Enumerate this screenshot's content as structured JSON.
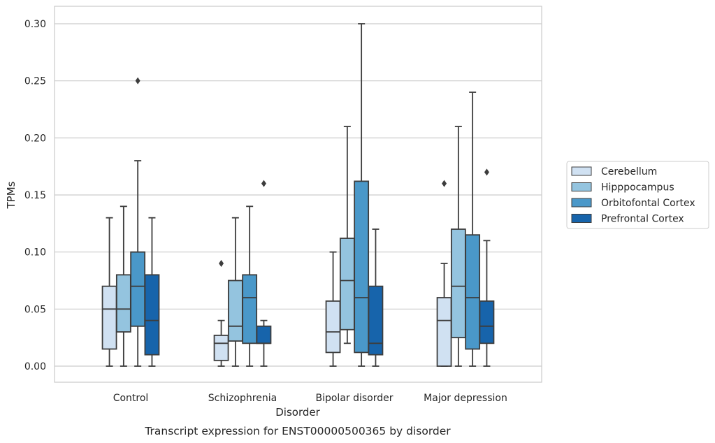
{
  "chart_data": {
    "type": "box",
    "caption": "Transcript expression for ENST00000500365 by disorder",
    "xlabel": "Disorder",
    "ylabel": "TPMs",
    "ylim": [
      -0.015,
      0.315
    ],
    "yticks": [
      "0.00",
      "0.05",
      "0.10",
      "0.15",
      "0.20",
      "0.25",
      "0.30"
    ],
    "ytick_values": [
      0.0,
      0.05,
      0.1,
      0.15,
      0.2,
      0.25,
      0.3
    ],
    "grid": "horizontal",
    "legend_position": "right",
    "categories": [
      "Control",
      "Schizophrenia",
      "Bipolar disorder",
      "Major depression"
    ],
    "series": [
      {
        "name": "Cerebellum",
        "color": "#d0e1f2",
        "boxes": [
          {
            "whisker_low": 0.0,
            "q1": 0.015,
            "median": 0.05,
            "q3": 0.07,
            "whisker_high": 0.13,
            "outliers": []
          },
          {
            "whisker_low": 0.0,
            "q1": 0.005,
            "median": 0.02,
            "q3": 0.027,
            "whisker_high": 0.04,
            "outliers": [
              0.09
            ]
          },
          {
            "whisker_low": 0.0,
            "q1": 0.012,
            "median": 0.03,
            "q3": 0.057,
            "whisker_high": 0.1,
            "outliers": []
          },
          {
            "whisker_low": 0.0,
            "q1": 0.0,
            "median": 0.04,
            "q3": 0.06,
            "whisker_high": 0.09,
            "outliers": [
              0.16
            ]
          }
        ]
      },
      {
        "name": "Hipppocampus",
        "color": "#94c4df",
        "boxes": [
          {
            "whisker_low": 0.0,
            "q1": 0.03,
            "median": 0.05,
            "q3": 0.08,
            "whisker_high": 0.14,
            "outliers": []
          },
          {
            "whisker_low": 0.0,
            "q1": 0.022,
            "median": 0.035,
            "q3": 0.075,
            "whisker_high": 0.13,
            "outliers": []
          },
          {
            "whisker_low": 0.02,
            "q1": 0.032,
            "median": 0.075,
            "q3": 0.112,
            "whisker_high": 0.21,
            "outliers": []
          },
          {
            "whisker_low": 0.0,
            "q1": 0.025,
            "median": 0.07,
            "q3": 0.12,
            "whisker_high": 0.21,
            "outliers": []
          }
        ]
      },
      {
        "name": "Orbitofontal Cortex",
        "color": "#4a98c9",
        "boxes": [
          {
            "whisker_low": 0.0,
            "q1": 0.035,
            "median": 0.07,
            "q3": 0.1,
            "whisker_high": 0.18,
            "outliers": [
              0.25
            ]
          },
          {
            "whisker_low": 0.0,
            "q1": 0.02,
            "median": 0.06,
            "q3": 0.08,
            "whisker_high": 0.14,
            "outliers": []
          },
          {
            "whisker_low": 0.0,
            "q1": 0.012,
            "median": 0.06,
            "q3": 0.162,
            "whisker_high": 0.3,
            "outliers": []
          },
          {
            "whisker_low": 0.0,
            "q1": 0.015,
            "median": 0.06,
            "q3": 0.115,
            "whisker_high": 0.24,
            "outliers": []
          }
        ]
      },
      {
        "name": "Prefrontal Cortex",
        "color": "#1764ab",
        "boxes": [
          {
            "whisker_low": 0.0,
            "q1": 0.01,
            "median": 0.04,
            "q3": 0.08,
            "whisker_high": 0.13,
            "outliers": []
          },
          {
            "whisker_low": 0.0,
            "q1": 0.02,
            "median": 0.02,
            "q3": 0.035,
            "whisker_high": 0.04,
            "outliers": [
              0.16
            ]
          },
          {
            "whisker_low": 0.0,
            "q1": 0.01,
            "median": 0.02,
            "q3": 0.07,
            "whisker_high": 0.12,
            "outliers": []
          },
          {
            "whisker_low": 0.0,
            "q1": 0.02,
            "median": 0.035,
            "q3": 0.057,
            "whisker_high": 0.11,
            "outliers": [
              0.17
            ]
          }
        ]
      }
    ]
  }
}
